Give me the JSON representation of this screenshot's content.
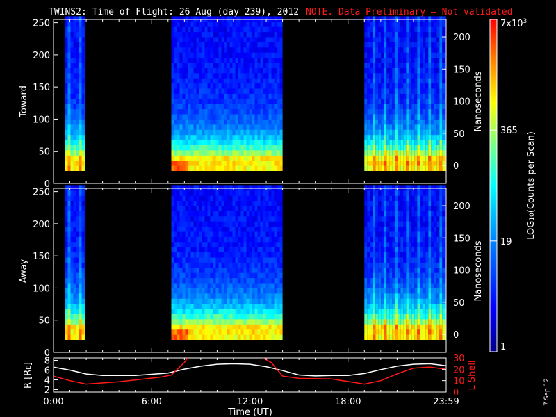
{
  "title": {
    "main": "TWINS2: Time of Flight: 26 Aug (day 239), 2012",
    "note": "NOTE. Data Preliminary – Not validated"
  },
  "colors": {
    "background": "#000000",
    "axis": "#ffffff",
    "note": "#ff1a1a",
    "r_line": "#ffffff",
    "lshell_line": "#ff1a1a"
  },
  "stamp": "7 Sep 12",
  "chart_data": [
    {
      "type": "heatmap",
      "panel": "toward",
      "ylabel": "Toward",
      "ylabel_right": "Nanoseconds",
      "yticks": [
        "0",
        "50",
        "100",
        "150",
        "200",
        "250"
      ],
      "yticks_right": [
        "0",
        "50",
        "100",
        "150",
        "200"
      ],
      "ylim": [
        0,
        255
      ],
      "xlim_hours": [
        0,
        24
      ],
      "data_intervals_hours": [
        [
          0.7,
          1.95
        ],
        [
          7.2,
          14.0
        ],
        [
          19.0,
          24.0
        ]
      ],
      "bright_band_channels": [
        20,
        45
      ]
    },
    {
      "type": "heatmap",
      "panel": "away",
      "ylabel": "Away",
      "ylabel_right": "Nanoseconds",
      "yticks": [
        "0",
        "50",
        "100",
        "150",
        "200",
        "250"
      ],
      "yticks_right": [
        "0",
        "50",
        "100",
        "150",
        "200"
      ],
      "ylim": [
        0,
        255
      ],
      "xlim_hours": [
        0,
        24
      ],
      "data_intervals_hours": [
        [
          0.7,
          1.95
        ],
        [
          7.2,
          14.0
        ],
        [
          19.0,
          24.0
        ]
      ],
      "bright_band_channels": [
        20,
        45
      ]
    },
    {
      "type": "line",
      "panel": "ephemeris",
      "ylabel": "R [R",
      "ylabel_sub": "E",
      "ylabel_close": "]",
      "ylabel_right": "L Shell",
      "yticks": [
        "2",
        "4",
        "6",
        "8"
      ],
      "yticks_right": [
        "0",
        "10",
        "20",
        "30"
      ],
      "ylim": [
        1.5,
        8.5
      ],
      "ylim_right": [
        0,
        30
      ],
      "xlabel": "Time (UT)",
      "xticks": [
        "0:00",
        "6:00",
        "12:00",
        "18:00",
        "23:59"
      ],
      "xlim_hours": [
        0,
        24
      ],
      "series": [
        {
          "label": "r",
          "x": [
            0,
            1,
            2,
            3,
            5,
            7,
            8,
            9,
            10,
            11,
            12,
            13,
            14,
            15,
            16,
            17,
            18,
            19,
            20,
            21,
            22,
            23,
            24
          ],
          "y": [
            6.6,
            6.0,
            5.2,
            4.9,
            4.9,
            5.4,
            6.2,
            6.8,
            7.2,
            7.3,
            7.2,
            6.7,
            5.9,
            5.0,
            4.8,
            4.9,
            4.9,
            5.3,
            6.1,
            6.8,
            7.2,
            7.3,
            6.9
          ]
        },
        {
          "label": "lshell",
          "x": [
            0,
            1,
            2,
            4,
            6.5,
            7.2,
            8.0,
            8.2
          ],
          "y": [
            14,
            10,
            7,
            9,
            13,
            15,
            26,
            30
          ]
        },
        {
          "label": "lshell2",
          "x": [
            12.8,
            13.3,
            14.0,
            15.0,
            17.0,
            19.0,
            20.0,
            21.0,
            22.0,
            23.0,
            24.0
          ],
          "y": [
            30,
            26,
            14,
            12,
            11.5,
            7,
            10,
            16,
            21,
            22,
            20
          ]
        }
      ]
    }
  ],
  "colorbar": {
    "label": "LOG",
    "label_sub": "10",
    "label_rest": "(Counts per Scan)",
    "ticks": [
      "1",
      "19",
      "365",
      "7x10"
    ],
    "top_exp": "3",
    "tick_values_fraction": [
      0.0,
      0.333,
      0.667,
      1.0
    ]
  }
}
